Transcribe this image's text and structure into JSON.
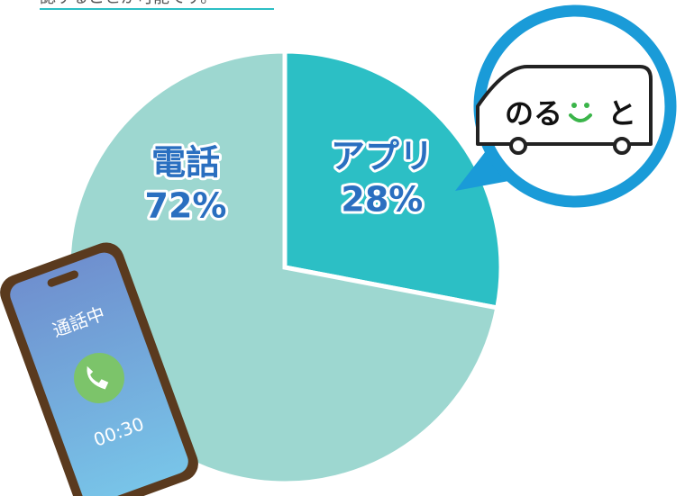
{
  "caption": "認することが可能です。",
  "chart_data": {
    "type": "pie",
    "categories": [
      "アプリ",
      "電話"
    ],
    "values": [
      28,
      72
    ],
    "value_labels": [
      "28%",
      "72%"
    ],
    "colors": [
      "#2cbfc5",
      "#9dd7d0"
    ]
  },
  "illustrations": {
    "phone_status": "通話中",
    "phone_time": "00:30",
    "logo": [
      "のる",
      "と"
    ]
  }
}
